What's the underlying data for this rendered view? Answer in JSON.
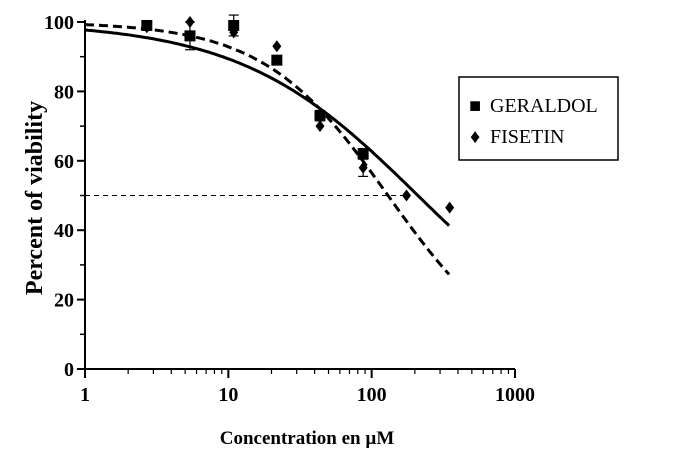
{
  "chart_data": {
    "type": "scatter",
    "title": "",
    "xlabel": "Concentration en µM",
    "ylabel": "Percent of viability",
    "xscale": "log",
    "xlim": [
      1,
      1000
    ],
    "ylim": [
      0,
      100
    ],
    "xticks": [
      "1",
      "10",
      "100",
      "1000"
    ],
    "yticks": [
      "0",
      "20",
      "40",
      "60",
      "80",
      "100"
    ],
    "grid": false,
    "legend_position": "right",
    "reference_line": {
      "y": 50,
      "x_from": 1,
      "x_to": 175,
      "style": "dashed"
    },
    "series": [
      {
        "name": "GERALDOL",
        "marker": "square",
        "points": [
          {
            "x": 2.7,
            "y": 99,
            "err": 0
          },
          {
            "x": 5.4,
            "y": 96,
            "err": 4
          },
          {
            "x": 10.9,
            "y": 99,
            "err": 3
          },
          {
            "x": 21.8,
            "y": 89,
            "err": 0
          },
          {
            "x": 43.6,
            "y": 73,
            "err": 1.5
          },
          {
            "x": 87.2,
            "y": 62,
            "err": 1.5
          }
        ],
        "fit": {
          "style": "solid",
          "top": 100,
          "bottom": 0,
          "ec50": 210,
          "hill": 0.7,
          "x_end": 350
        }
      },
      {
        "name": "FISETIN",
        "marker": "diamond",
        "points": [
          {
            "x": 2.7,
            "y": 98.5,
            "err": 0
          },
          {
            "x": 5.4,
            "y": 100,
            "err": 0
          },
          {
            "x": 10.9,
            "y": 97,
            "err": 0
          },
          {
            "x": 21.8,
            "y": 93,
            "err": 0
          },
          {
            "x": 43.6,
            "y": 70,
            "err": 0
          },
          {
            "x": 87.2,
            "y": 58,
            "err": 2.5
          },
          {
            "x": 175,
            "y": 50,
            "err": 0
          },
          {
            "x": 350,
            "y": 46.5,
            "err": 0
          }
        ],
        "fit": {
          "style": "dashed",
          "top": 100,
          "bottom": 0,
          "ec50": 130,
          "hill": 1.0,
          "x_end": 350
        }
      }
    ]
  },
  "legend": {
    "items": [
      {
        "label": "GERALDOL",
        "symbol": "■"
      },
      {
        "label": "FISETIN",
        "symbol": "♦"
      }
    ]
  }
}
